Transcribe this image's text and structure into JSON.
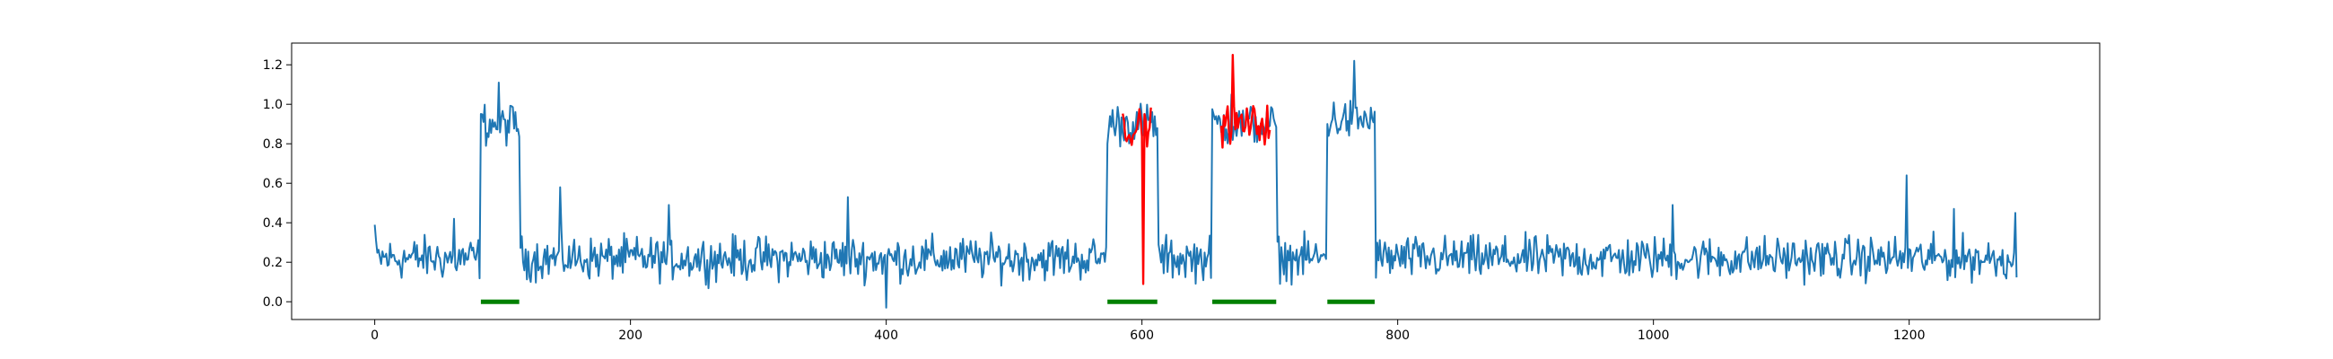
{
  "chart_data": {
    "type": "line",
    "title": "",
    "xlabel": "",
    "ylabel": "",
    "xlim": [
      -65,
      1349
    ],
    "ylim": [
      -0.09,
      1.31
    ],
    "x_ticks": [
      0,
      200,
      400,
      600,
      800,
      1000,
      1200
    ],
    "y_ticks": [
      0.0,
      0.2,
      0.4,
      0.6,
      0.8,
      1.0,
      1.2
    ],
    "x_tick_labels": [
      "0",
      "200",
      "400",
      "600",
      "800",
      "1000",
      "1200"
    ],
    "y_tick_labels": [
      "0.0",
      "0.2",
      "0.4",
      "0.6",
      "0.8",
      "1.0",
      "1.2"
    ],
    "grid": false,
    "legend": "none",
    "n_points": 1285,
    "baseline_level": 0.22,
    "colors": {
      "signal": "#1f77b4",
      "detected": "#ff0000",
      "truth": "#008000"
    },
    "series": [
      {
        "role": "signal",
        "color": "#1f77b4",
        "n_points": 1285,
        "elevated_segments": [
          {
            "start": 83,
            "end": 113,
            "level": 0.9
          },
          {
            "start": 573,
            "end": 612,
            "level": 0.9
          },
          {
            "start": 655,
            "end": 705,
            "level": 0.9
          },
          {
            "start": 745,
            "end": 782,
            "level": 0.92
          }
        ],
        "highlights": [
          {
            "x": 0,
            "y": 0.39
          },
          {
            "x": 62,
            "y": 0.42
          },
          {
            "x": 97,
            "y": 1.11
          },
          {
            "x": 145,
            "y": 0.58
          },
          {
            "x": 230,
            "y": 0.49
          },
          {
            "x": 370,
            "y": 0.53
          },
          {
            "x": 400,
            "y": -0.03
          },
          {
            "x": 670,
            "y": 1.05
          },
          {
            "x": 766,
            "y": 1.22
          },
          {
            "x": 1015,
            "y": 0.49
          },
          {
            "x": 1198,
            "y": 0.64
          },
          {
            "x": 1235,
            "y": 0.47
          },
          {
            "x": 1283,
            "y": 0.45
          }
        ]
      },
      {
        "role": "detected",
        "color": "#ff0000",
        "segments": [
          {
            "start": 585,
            "end": 607,
            "level": 0.88,
            "min": 0.09
          },
          {
            "start": 662,
            "end": 700,
            "level": 0.9,
            "max": 1.25
          }
        ]
      },
      {
        "role": "truth",
        "color": "#008000",
        "y": 0.0,
        "segments": [
          {
            "start": 83,
            "end": 113
          },
          {
            "start": 573,
            "end": 612
          },
          {
            "start": 655,
            "end": 705
          },
          {
            "start": 745,
            "end": 782
          }
        ]
      }
    ]
  }
}
